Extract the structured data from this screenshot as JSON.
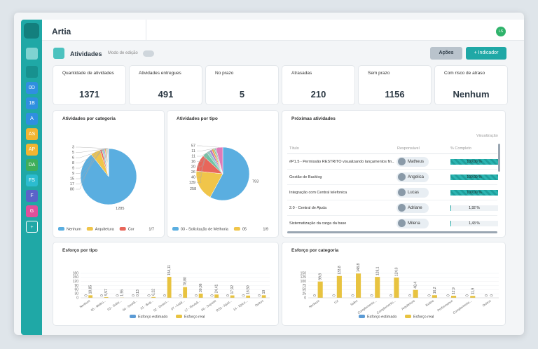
{
  "app": {
    "name": "Artia",
    "avatar": "LS"
  },
  "sidebar": {
    "items": [
      "0D",
      "1B",
      "A",
      "AS",
      "AP",
      "DA",
      "FS",
      "F",
      "G",
      "+"
    ]
  },
  "page": {
    "title": "Atividades",
    "edit_mode": "Modo de edição",
    "actions": "Ações",
    "add_indicator": "+ Indicador"
  },
  "kpis": [
    {
      "label": "Quantidade de atividades",
      "value": 1371
    },
    {
      "label": "Atividades entregues",
      "value": 491
    },
    {
      "label": "No prazo",
      "value": 5
    },
    {
      "label": "Atrasadas",
      "value": 210
    },
    {
      "label": "Sem prazo",
      "value": 1156
    },
    {
      "label": "Com risco de atraso",
      "value": "Nenhum"
    }
  ],
  "pies": [
    {
      "type": "pie",
      "title": "Atividades por categoria",
      "values": [
        1285,
        80,
        17,
        15,
        9,
        9,
        8,
        6,
        5,
        3
      ],
      "colors": [
        "#5aaee0",
        "#f0c54a",
        "#e8665a",
        "#8fd1c8",
        "#b07cc6",
        "#f59a4a",
        "#7fc97f",
        "#9aa6b2",
        "#e07ab8",
        "#c9b458"
      ],
      "legend": [
        "Nenhum",
        "Arquitetura",
        "Cor"
      ],
      "pagination": "1/7"
    },
    {
      "type": "pie",
      "title": "Atividades por tipo",
      "values": [
        793,
        258,
        139,
        40,
        26,
        20,
        16,
        11,
        11,
        57
      ],
      "colors": [
        "#5aaee0",
        "#f0c54a",
        "#e8665a",
        "#6fc3a4",
        "#8fd1c8",
        "#b07cc6",
        "#f59a4a",
        "#7fc97f",
        "#9aa6b2",
        "#e07ab8"
      ],
      "legend": [
        "03 - Solicitação de Melhoria",
        "05"
      ],
      "pagination": "1/9"
    }
  ],
  "table": {
    "title": "Próximas atividades",
    "view": "Visualização",
    "columns": [
      "Título",
      "Responsável",
      "% Completo"
    ],
    "rows": [
      {
        "title": "#P1.5 - Permissão RESTRITO visualizando lançamentos fin...",
        "owner": "Matheus",
        "complete": {
          "value": 100,
          "label": "100,00 %"
        }
      },
      {
        "title": "Gestão de Backlog",
        "owner": "Angelica",
        "complete": {
          "value": 100,
          "label": "100,00 %"
        }
      },
      {
        "title": "Integração com Central telefonica",
        "owner": "Lucas",
        "complete": {
          "value": 100,
          "label": "100,00 %"
        }
      },
      {
        "title": "2.0 - Central de Ajuda",
        "owner": "Adriane",
        "complete": {
          "value": 1.92,
          "label": "1,92 %"
        }
      },
      {
        "title": "Sistematização da carga da base",
        "owner": "Milena",
        "complete": {
          "value": 1.43,
          "label": "1,43 %"
        }
      }
    ]
  },
  "bars": [
    {
      "type": "bar",
      "title": "Esforço por tipo",
      "categories": [
        "Nenhum",
        "05 - Melho...",
        "03 - Solici...",
        "04 - Gestã...",
        "01 - Bug...",
        "02 - Desen...",
        "07 - Análi...",
        "17 - Revisã...",
        "06 - Suporte",
        "RS2 - Ajust...",
        "14 - Epico...",
        "Outros"
      ],
      "series": [
        {
          "name": "Esforço estimado",
          "color": "#5b9bd5",
          "values": [
            0,
            0,
            0,
            0,
            0,
            0,
            0,
            0,
            0,
            0,
            0,
            0
          ]
        },
        {
          "name": "Esforço real",
          "color": "#e8c340",
          "values": [
            18.85,
            5.57,
            1.55,
            0.13,
            6.22,
            154.11,
            78.8,
            30.96,
            24.41,
            17.92,
            16.5,
            19
          ],
          "value_labels": [
            "18,85",
            "5,57",
            "1,55",
            "0,13",
            "6,22",
            "154,11",
            "78,80",
            "30,96",
            "24,41",
            "17,92",
            "16,50",
            "19"
          ]
        }
      ],
      "ylim": [
        0,
        180
      ],
      "yticks": [
        0,
        30,
        60,
        90,
        120,
        150,
        180
      ],
      "grid": true
    },
    {
      "type": "bar",
      "title": "Esforço por categoria",
      "categories": [
        "Nenhum",
        "UX",
        "Sales",
        "Complemento...",
        "Complemento...",
        "Arquitetura",
        "Rotina",
        "Performance",
        "Complemento...",
        "Outros"
      ],
      "series": [
        {
          "name": "Esforço estimado",
          "color": "#5b9bd5",
          "values": [
            0,
            0,
            0,
            0,
            0,
            0,
            0,
            0,
            0,
            0
          ]
        },
        {
          "name": "Esforço real",
          "color": "#e8c340",
          "values": [
            99.8,
            133.8,
            148.8,
            128.1,
            124,
            48.4,
            16.2,
            12.9,
            11.9,
            0
          ],
          "value_labels": [
            "99,8",
            "133,8",
            "148,8",
            "128,1",
            "124,0",
            "48,4",
            "16,2",
            "12,9",
            "11,9",
            "0"
          ]
        }
      ],
      "ylim": [
        0,
        150
      ],
      "yticks": [
        0,
        25,
        50,
        75,
        100,
        125,
        150
      ],
      "grid": true
    }
  ]
}
